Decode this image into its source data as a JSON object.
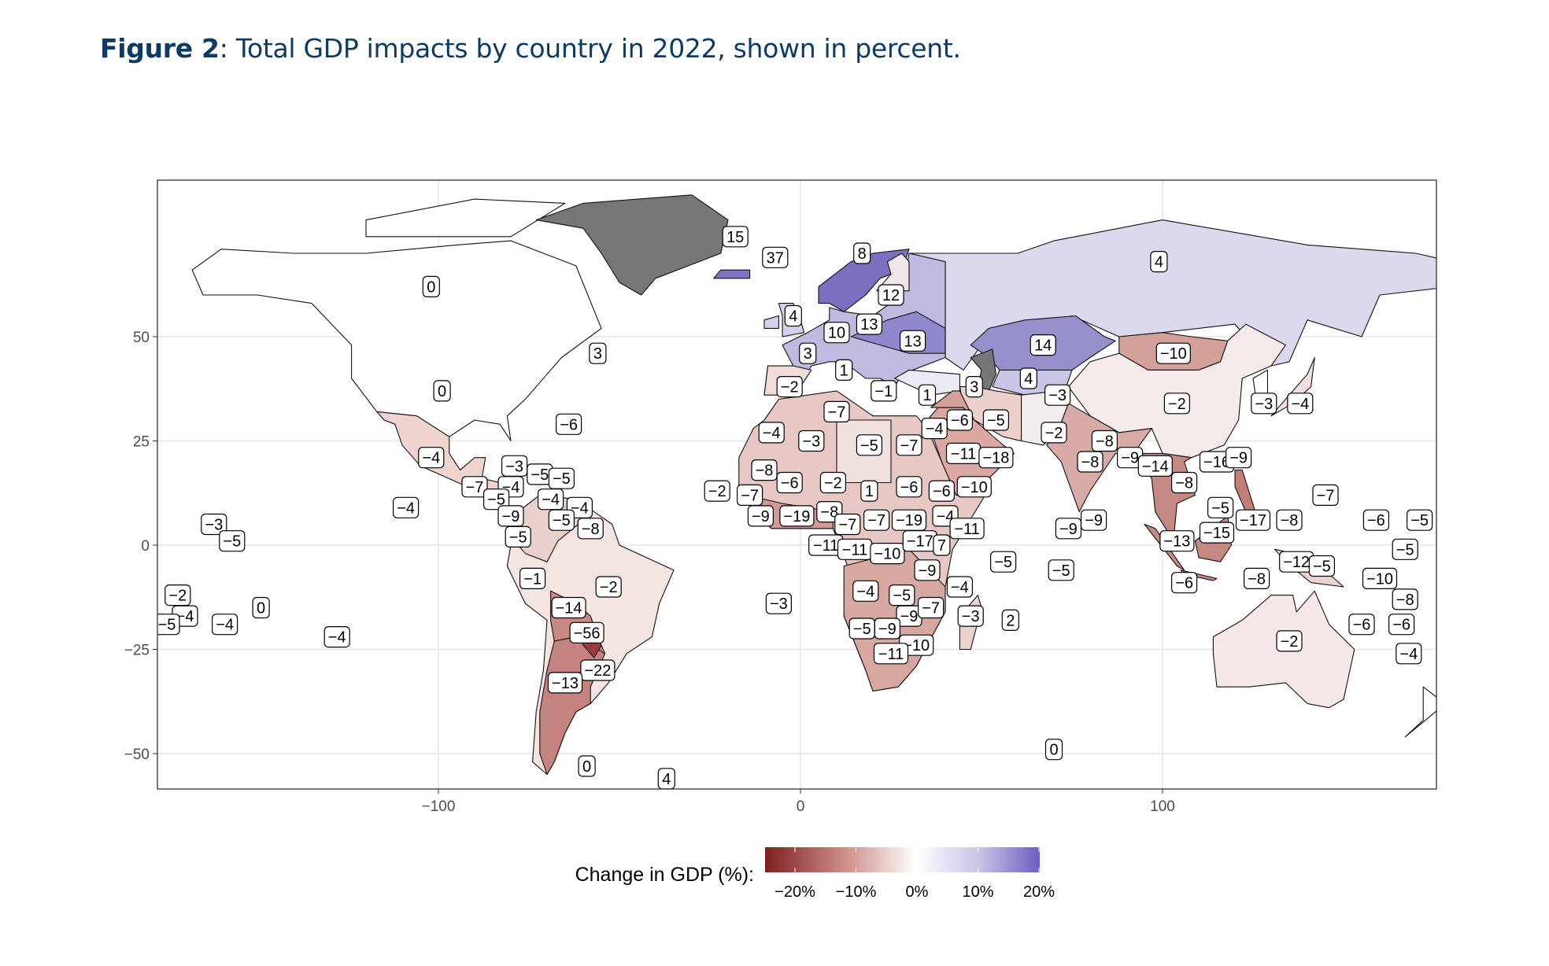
{
  "figure": {
    "number_label": "Figure 2",
    "caption": ": Total GDP impacts by country in 2022, shown in percent.",
    "title_color": "#0d3b66"
  },
  "chart_data": {
    "type": "choropleth-map",
    "x_ticks": [
      "−100",
      "0",
      "100"
    ],
    "x_tick_values": [
      -100,
      0,
      100
    ],
    "y_ticks": [
      "50",
      "25",
      "0",
      "−25",
      "−50"
    ],
    "y_tick_values": [
      50,
      25,
      0,
      -25,
      -50
    ],
    "xlim": [
      -180,
      180
    ],
    "ylim": [
      -58,
      87
    ],
    "grid": true,
    "legend": {
      "title": "Change in GDP (%):",
      "position": "bottom",
      "ticks": [
        "−20%",
        "−10%",
        "0%",
        "10%",
        "20%"
      ],
      "tick_values": [
        -20,
        -10,
        0,
        10,
        20
      ],
      "low_color": "#7f1f1f",
      "mid_color": "#ffffff",
      "high_color": "#6a5fc0",
      "no_data_color": "#767676"
    },
    "labels": [
      {
        "v": "15",
        "lon": -18,
        "lat": 74
      },
      {
        "v": "37",
        "lon": -7,
        "lat": 69
      },
      {
        "v": "8",
        "lon": 17,
        "lat": 70
      },
      {
        "v": "4",
        "lon": 99,
        "lat": 68
      },
      {
        "v": "0",
        "lon": -102,
        "lat": 62
      },
      {
        "v": "12",
        "lon": 25,
        "lat": 60
      },
      {
        "v": "4",
        "lon": -2,
        "lat": 55
      },
      {
        "v": "10",
        "lon": 10,
        "lat": 51
      },
      {
        "v": "13",
        "lon": 19,
        "lat": 53
      },
      {
        "v": "13",
        "lon": 31,
        "lat": 49
      },
      {
        "v": "14",
        "lon": 67,
        "lat": 48
      },
      {
        "v": "3",
        "lon": -56,
        "lat": 46
      },
      {
        "v": "3",
        "lon": 2,
        "lat": 46
      },
      {
        "v": "−10",
        "lon": 103,
        "lat": 46
      },
      {
        "v": "1",
        "lon": 12,
        "lat": 42
      },
      {
        "v": "0",
        "lon": -99,
        "lat": 37
      },
      {
        "v": "−2",
        "lon": -3,
        "lat": 38
      },
      {
        "v": "−1",
        "lon": 23,
        "lat": 37
      },
      {
        "v": "1",
        "lon": 35,
        "lat": 36
      },
      {
        "v": "3",
        "lon": 48,
        "lat": 38
      },
      {
        "v": "4",
        "lon": 63,
        "lat": 40
      },
      {
        "v": "−3",
        "lon": 71,
        "lat": 36
      },
      {
        "v": "−2",
        "lon": 104,
        "lat": 34
      },
      {
        "v": "−3",
        "lon": 128,
        "lat": 34
      },
      {
        "v": "−4",
        "lon": 138,
        "lat": 34
      },
      {
        "v": "−7",
        "lon": 10,
        "lat": 32
      },
      {
        "v": "−6",
        "lon": -64,
        "lat": 29
      },
      {
        "v": "−4",
        "lon": 37,
        "lat": 28
      },
      {
        "v": "−6",
        "lon": 44,
        "lat": 30
      },
      {
        "v": "−5",
        "lon": 54,
        "lat": 30
      },
      {
        "v": "−2",
        "lon": 70,
        "lat": 27
      },
      {
        "v": "−8",
        "lon": 84,
        "lat": 25
      },
      {
        "v": "−4",
        "lon": -8,
        "lat": 27
      },
      {
        "v": "−3",
        "lon": 3,
        "lat": 25
      },
      {
        "v": "−5",
        "lon": 19,
        "lat": 24
      },
      {
        "v": "−7",
        "lon": 30,
        "lat": 24
      },
      {
        "v": "−4",
        "lon": -102,
        "lat": 21
      },
      {
        "v": "−11",
        "lon": 45,
        "lat": 22
      },
      {
        "v": "−18",
        "lon": 54,
        "lat": 21
      },
      {
        "v": "−8",
        "lon": 80,
        "lat": 20
      },
      {
        "v": "−9",
        "lon": 91,
        "lat": 21
      },
      {
        "v": "−14",
        "lon": 98,
        "lat": 19
      },
      {
        "v": "−16",
        "lon": 115,
        "lat": 20
      },
      {
        "v": "−9",
        "lon": 121,
        "lat": 21
      },
      {
        "v": "−3",
        "lon": -79,
        "lat": 19
      },
      {
        "v": "−5",
        "lon": -72,
        "lat": 17
      },
      {
        "v": "−5",
        "lon": -66,
        "lat": 16
      },
      {
        "v": "−7",
        "lon": -90,
        "lat": 14
      },
      {
        "v": "−4",
        "lon": -80,
        "lat": 14
      },
      {
        "v": "−5",
        "lon": -84,
        "lat": 11
      },
      {
        "v": "−8",
        "lon": -10,
        "lat": 18
      },
      {
        "v": "−6",
        "lon": -3,
        "lat": 15
      },
      {
        "v": "−2",
        "lon": 9,
        "lat": 15
      },
      {
        "v": "1",
        "lon": 19,
        "lat": 13
      },
      {
        "v": "−6",
        "lon": 30,
        "lat": 14
      },
      {
        "v": "−6",
        "lon": 39,
        "lat": 13
      },
      {
        "v": "−10",
        "lon": 48,
        "lat": 14
      },
      {
        "v": "−2",
        "lon": -23,
        "lat": 13
      },
      {
        "v": "−7",
        "lon": -14,
        "lat": 12
      },
      {
        "v": "−8",
        "lon": 106,
        "lat": 15
      },
      {
        "v": "−7",
        "lon": 145,
        "lat": 12
      },
      {
        "v": "−4",
        "lon": -109,
        "lat": 9
      },
      {
        "v": "−4",
        "lon": -69,
        "lat": 11
      },
      {
        "v": "−4",
        "lon": -61,
        "lat": 9
      },
      {
        "v": "−9",
        "lon": -80,
        "lat": 7
      },
      {
        "v": "−5",
        "lon": -66,
        "lat": 6
      },
      {
        "v": "−8",
        "lon": -58,
        "lat": 4
      },
      {
        "v": "−9",
        "lon": -11,
        "lat": 7
      },
      {
        "v": "−19",
        "lon": -1,
        "lat": 7
      },
      {
        "v": "−8",
        "lon": 8,
        "lat": 8
      },
      {
        "v": "−7",
        "lon": 13,
        "lat": 5
      },
      {
        "v": "−7",
        "lon": 21,
        "lat": 6
      },
      {
        "v": "−19",
        "lon": 30,
        "lat": 6
      },
      {
        "v": "−4",
        "lon": 40,
        "lat": 7
      },
      {
        "v": "−11",
        "lon": 46,
        "lat": 4
      },
      {
        "v": "−5",
        "lon": 116,
        "lat": 9
      },
      {
        "v": "−17",
        "lon": 125,
        "lat": 6
      },
      {
        "v": "−8",
        "lon": 135,
        "lat": 6
      },
      {
        "v": "−6",
        "lon": 159,
        "lat": 6
      },
      {
        "v": "−5",
        "lon": 171,
        "lat": 6
      },
      {
        "v": "−9",
        "lon": 74,
        "lat": 4
      },
      {
        "v": "−9",
        "lon": 81,
        "lat": 6
      },
      {
        "v": "−3",
        "lon": -162,
        "lat": 5
      },
      {
        "v": "−5",
        "lon": -157,
        "lat": 1
      },
      {
        "v": "−5",
        "lon": -78,
        "lat": 2
      },
      {
        "v": "−15",
        "lon": 115,
        "lat": 3
      },
      {
        "v": "−13",
        "lon": 104,
        "lat": 1
      },
      {
        "v": "−11",
        "lon": 7,
        "lat": 0
      },
      {
        "v": "−11",
        "lon": 15,
        "lat": -1
      },
      {
        "v": "−10",
        "lon": 24,
        "lat": -2
      },
      {
        "v": "−17",
        "lon": 33,
        "lat": 1
      },
      {
        "v": "7",
        "lon": 39,
        "lat": 0
      },
      {
        "v": "−5",
        "lon": 167,
        "lat": -1
      },
      {
        "v": "−12",
        "lon": 137,
        "lat": -4
      },
      {
        "v": "−5",
        "lon": 144,
        "lat": -5
      },
      {
        "v": "−5",
        "lon": 56,
        "lat": -4
      },
      {
        "v": "−9",
        "lon": 35,
        "lat": -6
      },
      {
        "v": "−5",
        "lon": 72,
        "lat": -6
      },
      {
        "v": "−1",
        "lon": -74,
        "lat": -8
      },
      {
        "v": "−2",
        "lon": -53,
        "lat": -10
      },
      {
        "v": "−8",
        "lon": 126,
        "lat": -8
      },
      {
        "v": "−6",
        "lon": 106,
        "lat": -9
      },
      {
        "v": "−10",
        "lon": 160,
        "lat": -8
      },
      {
        "v": "−2",
        "lon": -172,
        "lat": -12
      },
      {
        "v": "−4",
        "lon": -170,
        "lat": -17
      },
      {
        "v": "−5",
        "lon": -175,
        "lat": -19
      },
      {
        "v": "−4",
        "lon": -159,
        "lat": -19
      },
      {
        "v": "0",
        "lon": -149,
        "lat": -15
      },
      {
        "v": "−4",
        "lon": -128,
        "lat": -22
      },
      {
        "v": "−14",
        "lon": -64,
        "lat": -15
      },
      {
        "v": "−56",
        "lon": -59,
        "lat": -21
      },
      {
        "v": "−3",
        "lon": -6,
        "lat": -14
      },
      {
        "v": "−4",
        "lon": 18,
        "lat": -11
      },
      {
        "v": "−5",
        "lon": 28,
        "lat": -12
      },
      {
        "v": "−4",
        "lon": 44,
        "lat": -10
      },
      {
        "v": "−9",
        "lon": 30,
        "lat": -17
      },
      {
        "v": "−7",
        "lon": 36,
        "lat": -15
      },
      {
        "v": "−3",
        "lon": 47,
        "lat": -17
      },
      {
        "v": "2",
        "lon": 58,
        "lat": -18
      },
      {
        "v": "−8",
        "lon": 167,
        "lat": -13
      },
      {
        "v": "−6",
        "lon": 155,
        "lat": -19
      },
      {
        "v": "−6",
        "lon": 166,
        "lat": -19
      },
      {
        "v": "−5",
        "lon": 17,
        "lat": -20
      },
      {
        "v": "−9",
        "lon": 24,
        "lat": -20
      },
      {
        "v": "−2",
        "lon": 135,
        "lat": -23
      },
      {
        "v": "−10",
        "lon": 32,
        "lat": -24
      },
      {
        "v": "−11",
        "lon": 25,
        "lat": -26
      },
      {
        "v": "−4",
        "lon": 168,
        "lat": -26
      },
      {
        "v": "−22",
        "lon": -56,
        "lat": -30
      },
      {
        "v": "−13",
        "lon": -65,
        "lat": -33
      },
      {
        "v": "0",
        "lon": -59,
        "lat": -53
      },
      {
        "v": "4",
        "lon": -37,
        "lat": -56
      },
      {
        "v": "0",
        "lon": 70,
        "lat": -49
      }
    ]
  }
}
